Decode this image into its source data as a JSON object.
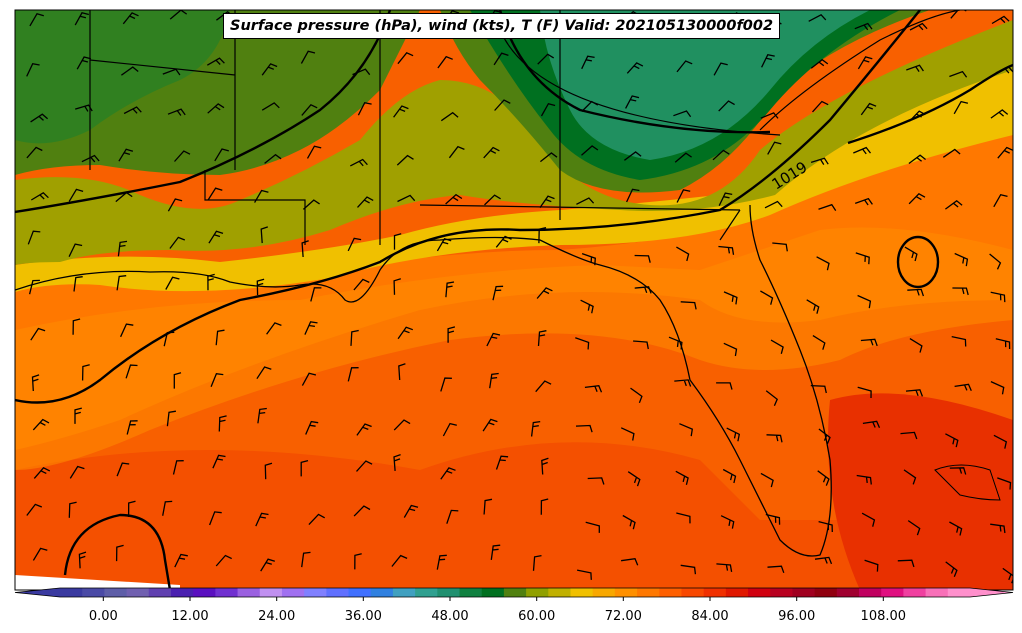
{
  "title": "Surface pressure (hPa), wind (kts), T (F) Valid: 202105130000f002",
  "colorbar": {
    "ticks": [
      {
        "value": 0,
        "label": "0.00"
      },
      {
        "value": 12,
        "label": "12.00"
      },
      {
        "value": 24,
        "label": "24.00"
      },
      {
        "value": 36,
        "label": "36.00"
      },
      {
        "value": 48,
        "label": "48.00"
      },
      {
        "value": 60,
        "label": "60.00"
      },
      {
        "value": 72,
        "label": "72.00"
      },
      {
        "value": 84,
        "label": "84.00"
      },
      {
        "value": 96,
        "label": "96.00"
      },
      {
        "value": 108,
        "label": "108.00"
      }
    ],
    "colors": [
      "#3a3aa0",
      "#4a4aa6",
      "#5e5ea8",
      "#7060b0",
      "#6040b0",
      "#4a20b0",
      "#5a10c0",
      "#7030d0",
      "#9a60e0",
      "#c090f0",
      "#a070f0",
      "#8080ff",
      "#6070ff",
      "#4070ff",
      "#3080e0",
      "#40a0c0",
      "#30a090",
      "#209070",
      "#108040",
      "#007020",
      "#508010",
      "#90a000",
      "#c0b000",
      "#f0c000",
      "#f8a800",
      "#ff9000",
      "#ff7800",
      "#ff6000",
      "#f84800",
      "#f03000",
      "#e01800",
      "#d00010",
      "#b80020",
      "#a00020",
      "#900010",
      "#a00030",
      "#c00060",
      "#e01080",
      "#f040a0",
      "#f870b8",
      "#ff90cc"
    ],
    "range": [
      -6,
      120
    ]
  },
  "contour_labels": [
    {
      "text": "1019"
    }
  ]
}
